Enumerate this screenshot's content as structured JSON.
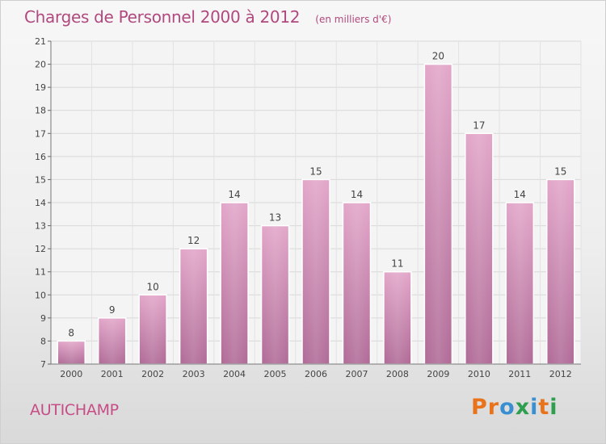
{
  "header": {
    "title": "Charges de Personnel 2000 à 2012",
    "subtitle": "(en milliers d'€)"
  },
  "footer": {
    "commune": "AUTICHAMP",
    "logo_letters": [
      "P",
      "r",
      "o",
      "x",
      "i",
      "t",
      "i"
    ],
    "logo_colors": [
      "#e8731b",
      "#e8731b",
      "#3a8fd1",
      "#2e9e4f",
      "#3a8fd1",
      "#e8731b",
      "#2e9e4f"
    ]
  },
  "colors": {
    "bar": "#d68fb8",
    "bar_dark": "#b86fa0",
    "title": "#b0497e",
    "axis": "#555555"
  },
  "chart_data": {
    "type": "bar",
    "title": "Charges de Personnel 2000 à 2012",
    "subtitle": "(en milliers d'€)",
    "xlabel": "",
    "ylabel": "",
    "categories": [
      "2000",
      "2001",
      "2002",
      "2003",
      "2004",
      "2005",
      "2006",
      "2007",
      "2008",
      "2009",
      "2010",
      "2011",
      "2012"
    ],
    "values": [
      8,
      9,
      10,
      12,
      14,
      13,
      15,
      14,
      11,
      20,
      17,
      14,
      15
    ],
    "ylim": [
      7,
      21
    ],
    "yticks": [
      7,
      8,
      9,
      10,
      11,
      12,
      13,
      14,
      15,
      16,
      17,
      18,
      19,
      20,
      21
    ],
    "grid": true
  }
}
